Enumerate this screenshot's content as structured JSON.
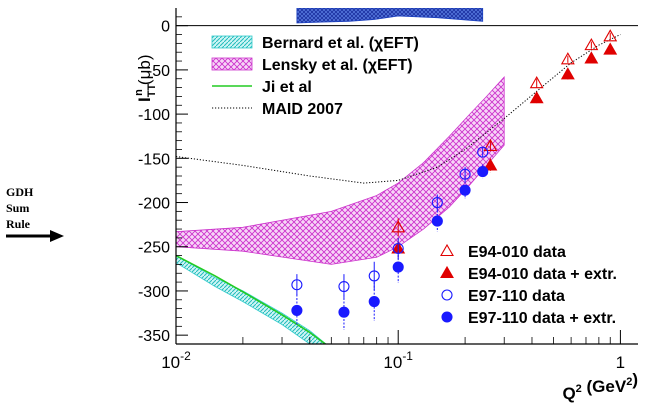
{
  "chart_data": {
    "type": "scatter",
    "title": "",
    "xlabel": "Q² (GeV²)",
    "ylabel": "I_TT^n (μb)",
    "xscale": "log",
    "xlim": [
      0.01,
      1.2
    ],
    "ylim": [
      -360,
      20
    ],
    "x_ticks": [
      "10⁻²",
      "10⁻¹",
      "1"
    ],
    "y_ticks": [
      0,
      -50,
      -100,
      -150,
      -200,
      -250,
      -300,
      -350
    ],
    "grid": false,
    "legend_top_left": [
      {
        "label": "Bernard et al. (χEFT)",
        "color": "#33cccc"
      },
      {
        "label": "Lensky et al. (χEFT)",
        "color": "#cc33cc"
      },
      {
        "label": "Ji et al",
        "color": "#22cc22"
      },
      {
        "label": "MAID 2007",
        "color": "#000000"
      }
    ],
    "legend_bottom_right": [
      {
        "label": "E94-010 data",
        "color": "#e00000"
      },
      {
        "label": "E94-010 data + extr.",
        "color": "#e00000"
      },
      {
        "label": "E97-110 data",
        "color": "#1a1aff"
      },
      {
        "label": "E97-110 data + extr.",
        "color": "#1a1aff"
      }
    ],
    "series": [
      {
        "name": "E94-010 data",
        "x": [
          0.1,
          0.26,
          0.42,
          0.58,
          0.74,
          0.9
        ],
        "y": [
          -228,
          -136,
          -65,
          -38,
          -22,
          -12
        ],
        "err": [
          10,
          6,
          5,
          4,
          4,
          4
        ]
      },
      {
        "name": "E94-010 data + extr.",
        "x": [
          0.1,
          0.26,
          0.42,
          0.58,
          0.74,
          0.9
        ],
        "y": [
          -252,
          -158,
          -82,
          -55,
          -37,
          -27
        ],
        "err": [
          12,
          8,
          6,
          6,
          5,
          5
        ]
      },
      {
        "name": "E97-110 data",
        "x": [
          0.035,
          0.057,
          0.078,
          0.1,
          0.15,
          0.2,
          0.24
        ],
        "y": [
          -293,
          -295,
          -283,
          -252,
          -200,
          -168,
          -143
        ],
        "err": [
          12,
          14,
          16,
          12,
          9,
          8,
          6
        ]
      },
      {
        "name": "E97-110 data + extr.",
        "x": [
          0.035,
          0.057,
          0.078,
          0.1,
          0.15,
          0.2,
          0.24
        ],
        "y": [
          -322,
          -324,
          -312,
          -273,
          -221,
          -186,
          -165
        ],
        "err": [
          18,
          20,
          22,
          18,
          12,
          10,
          8
        ]
      }
    ],
    "bands": [
      {
        "name": "Lensky et al. (χEFT)",
        "x": [
          0.01,
          0.02,
          0.05,
          0.08,
          0.1,
          0.13,
          0.17,
          0.21,
          0.25,
          0.3
        ],
        "upper": [
          -233,
          -228,
          -210,
          -192,
          -178,
          -155,
          -125,
          -100,
          -80,
          -58
        ],
        "lower": [
          -250,
          -255,
          -270,
          -262,
          -250,
          -230,
          -205,
          -180,
          -158,
          -135
        ]
      },
      {
        "name": "Bernard et al. (χEFT)",
        "x": [
          0.01,
          0.015,
          0.02,
          0.03,
          0.04,
          0.05
        ],
        "upper": [
          -260,
          -285,
          -300,
          -325,
          -345,
          -365
        ],
        "lower": [
          -268,
          -295,
          -312,
          -338,
          -360,
          -380
        ]
      },
      {
        "name": "systematic error",
        "x": [
          0.035,
          0.045,
          0.06,
          0.078,
          0.1,
          0.15,
          0.24
        ],
        "upper": [
          20,
          20,
          20,
          20,
          20,
          20,
          20
        ],
        "lower": [
          3,
          4,
          5,
          7,
          11,
          9,
          5
        ]
      }
    ],
    "lines": [
      {
        "name": "Ji et al",
        "x": [
          0.01,
          0.015,
          0.02,
          0.03,
          0.04,
          0.05
        ],
        "y": [
          -260,
          -283,
          -301,
          -327,
          -347,
          -365
        ]
      },
      {
        "name": "MAID 2007",
        "x": [
          0.01,
          0.02,
          0.04,
          0.07,
          0.1,
          0.15,
          0.2,
          0.3,
          0.45,
          0.6,
          0.8,
          1.0
        ],
        "y": [
          -148,
          -158,
          -170,
          -178,
          -175,
          -160,
          -140,
          -105,
          -68,
          -42,
          -22,
          -10
        ]
      }
    ]
  },
  "side_label": {
    "lines": [
      "GDH",
      "Sum",
      "Rule"
    ]
  },
  "colors": {
    "lensky": "#cc33cc",
    "bernard": "#33cccc",
    "ji": "#22cc22",
    "syst": "#1a3fbf",
    "red": "#e00000",
    "blue": "#1a1aff"
  }
}
